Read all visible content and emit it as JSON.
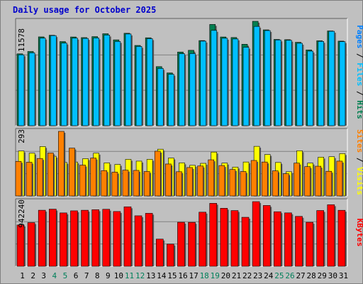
{
  "chart_data": [
    {
      "type": "bar",
      "title": "Daily usage for October 2025",
      "categories": [
        "1",
        "2",
        "3",
        "4",
        "5",
        "6",
        "7",
        "8",
        "9",
        "10",
        "11",
        "12",
        "13",
        "14",
        "15",
        "16",
        "17",
        "18",
        "19",
        "20",
        "21",
        "22",
        "23",
        "24",
        "25",
        "26",
        "27",
        "28",
        "29",
        "30",
        "31"
      ],
      "weekend_days": [
        "4",
        "5",
        "11",
        "12",
        "18",
        "19",
        "25",
        "26"
      ],
      "ymax_label": "11578",
      "ylim": [
        0,
        11578
      ],
      "series": [
        {
          "name": "Hits",
          "color": "#007f50",
          "values": [
            7970,
            8230,
            9850,
            10030,
            9330,
            9840,
            9770,
            9880,
            10200,
            9520,
            10250,
            8900,
            9750,
            6550,
            5850,
            8170,
            8360,
            9440,
            11230,
            9840,
            9780,
            9030,
            11578,
            10630,
            9570,
            9540,
            9250,
            8400,
            9420,
            10510,
            9380
          ]
        },
        {
          "name": "Files",
          "color": "#00bfff",
          "values": [
            7860,
            8080,
            9710,
            9990,
            9160,
            9710,
            9680,
            9730,
            10050,
            9340,
            10170,
            8790,
            9650,
            6350,
            5700,
            7980,
            8000,
            9380,
            10570,
            9700,
            9620,
            8700,
            11010,
            10550,
            9510,
            9470,
            9140,
            8270,
            9350,
            10470,
            9320
          ]
        },
        {
          "name": "Pages",
          "color": "#0080ff",
          "values": [
            null,
            null,
            null,
            null,
            null,
            null,
            null,
            null,
            null,
            null,
            null,
            null,
            null,
            null,
            null,
            null,
            null,
            null,
            null,
            null,
            null,
            null,
            null,
            null,
            null,
            null,
            null,
            null,
            null,
            null,
            null
          ]
        }
      ],
      "legend": [
        "Pages",
        "Files",
        "Hits"
      ]
    },
    {
      "type": "bar",
      "ymax_label": "293",
      "ylim": [
        0,
        293
      ],
      "series": [
        {
          "name": "Visits",
          "color": "#ffff00",
          "values": [
            204,
            194,
            224,
            180,
            152,
            154,
            169,
            194,
            150,
            143,
            166,
            158,
            166,
            212,
            172,
            150,
            139,
            148,
            199,
            149,
            131,
            154,
            225,
            188,
            152,
            110,
            205,
            149,
            176,
            178,
            192
          ]
        },
        {
          "name": "Sites",
          "color": "#ff8000",
          "values": [
            157,
            153,
            170,
            195,
            293,
            217,
            140,
            172,
            115,
            108,
            117,
            116,
            111,
            203,
            145,
            110,
            129,
            136,
            164,
            138,
            120,
            111,
            161,
            154,
            114,
            101,
            149,
            133,
            135,
            112,
            158
          ]
        }
      ],
      "legend": [
        "Sites",
        "Visits"
      ]
    },
    {
      "type": "bar",
      "ymax_label": "942240",
      "ylim": [
        0,
        942240
      ],
      "series": [
        {
          "name": "KBytes",
          "color": "#ff0000",
          "values": [
            601850,
            636570,
            816880,
            832690,
            777810,
            808390,
            816800,
            824540,
            830850,
            798390,
            866930,
            735900,
            772010,
            395860,
            322960,
            641620,
            640260,
            788720,
            917830,
            845550,
            811940,
            714080,
            942240,
            886400,
            795060,
            778210,
            727380,
            640990,
            812900,
            897120,
            816090
          ]
        }
      ],
      "legend": [
        "KBytes"
      ]
    }
  ]
}
